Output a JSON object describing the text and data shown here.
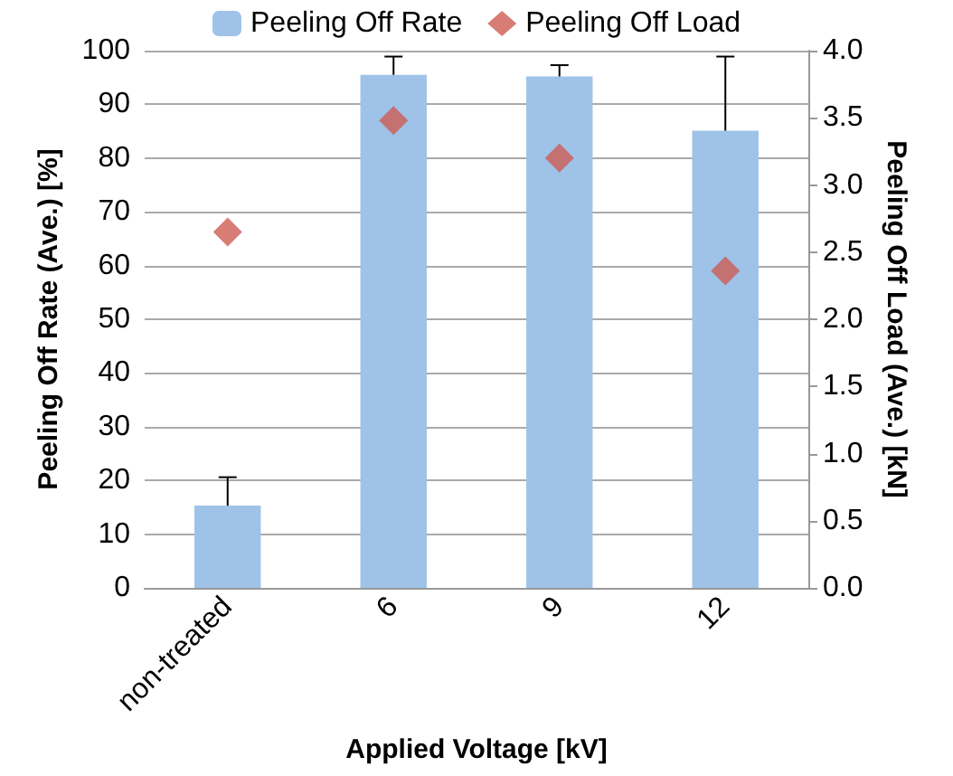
{
  "chart_data": {
    "type": "bar",
    "xlabel": "Applied Voltage [kV]",
    "ylabel": "Peeling Off Rate (Ave.) [%]",
    "y2label": "Peeling Off Load (Ave.) [kN]",
    "categories": [
      "non-treated",
      "6",
      "9",
      "12"
    ],
    "series": [
      {
        "name": "Peeling Off Rate",
        "color": "#9fc2e8",
        "values": [
          15.3,
          95.5,
          95.2,
          85.1
        ],
        "errors": [
          [
            15.3,
            20.6
          ],
          [
            95.5,
            98.9
          ],
          [
            95.2,
            97.3
          ],
          [
            85.1,
            98.9
          ]
        ]
      },
      {
        "name": "Peeling Off Load",
        "type": "scatter",
        "axis": "y2",
        "color": "#cd5c52",
        "marker": "diamond",
        "values": [
          2.65,
          3.48,
          3.2,
          2.36
        ]
      }
    ],
    "ylim": [
      0,
      100
    ],
    "yticks": [
      0,
      10,
      20,
      30,
      40,
      50,
      60,
      70,
      80,
      90,
      100
    ],
    "y2lim": [
      0,
      4
    ],
    "y2ticks": [
      {
        "value": 0,
        "label": "0.0"
      },
      {
        "value": 0.5,
        "label": "0.5"
      },
      {
        "value": 1,
        "label": "1.0"
      },
      {
        "value": 1.5,
        "label": "1.5"
      },
      {
        "value": 2,
        "label": "2.0"
      },
      {
        "value": 2.5,
        "label": "2.5"
      },
      {
        "value": 3,
        "label": "3.0"
      },
      {
        "value": 3.5,
        "label": "3.5"
      },
      {
        "value": 4,
        "label": "4.0"
      }
    ],
    "grid": "y",
    "legend": "top"
  }
}
